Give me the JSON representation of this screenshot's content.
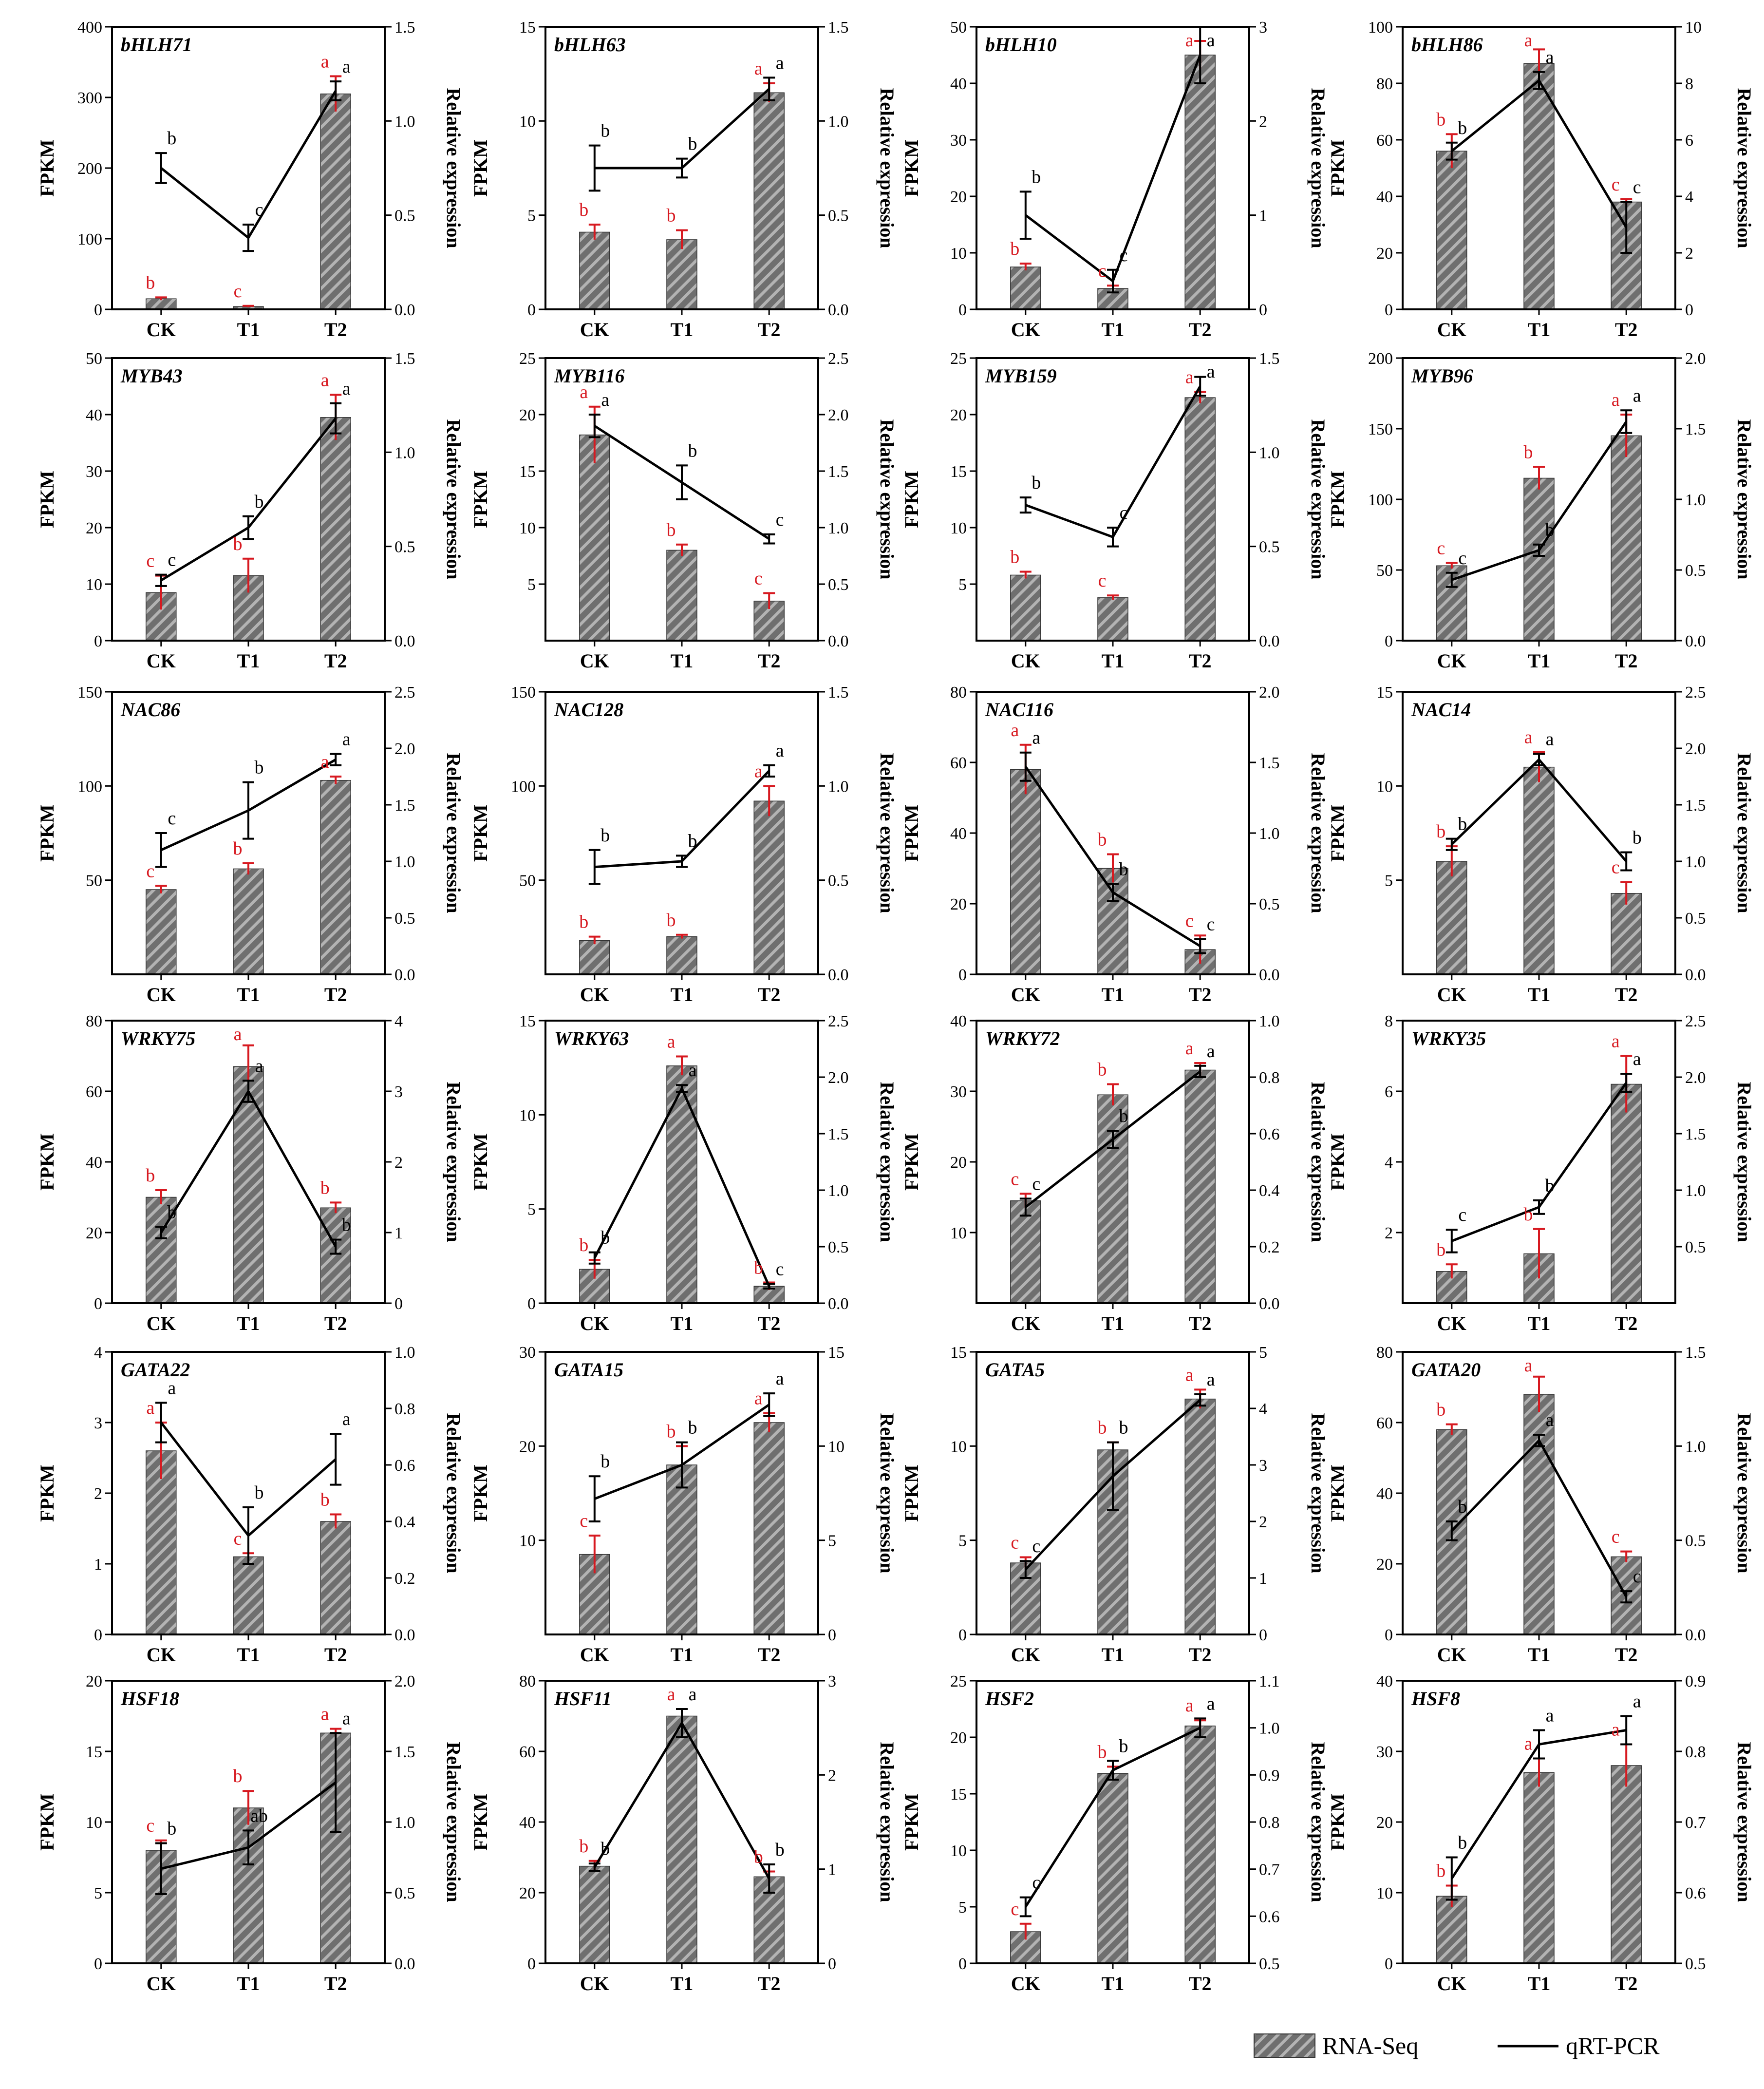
{
  "categories": [
    "CK",
    "T1",
    "T2"
  ],
  "y_left_label": "FPKM",
  "y_right_label": "Relative expression",
  "legend": {
    "bar_label": "RNA-Seq",
    "line_label": "qRT-PCR"
  },
  "colors": {
    "bar_fill": "#6f6f6f",
    "rna_letter": "#d71920",
    "qpcr_letter": "#000000",
    "line": "#000000"
  },
  "chart_data": [
    {
      "type": "bar+line",
      "gene": "bHLH71",
      "left": {
        "min": 0,
        "max": 400,
        "ticks": [
          0,
          100,
          200,
          300,
          400
        ]
      },
      "right": {
        "min": 0,
        "max": 1.5,
        "ticks": [
          "0.0",
          "0.5",
          "1.0",
          "1.5"
        ]
      },
      "rnaseq": [
        15,
        4,
        305
      ],
      "rnaseq_err": [
        2,
        1,
        25
      ],
      "rnaseq_sig": [
        "b",
        "c",
        "a"
      ],
      "qpcr": [
        0.75,
        0.38,
        1.16
      ],
      "qpcr_err": [
        0.08,
        0.07,
        0.05
      ],
      "qpcr_sig": [
        "b",
        "c",
        "a"
      ]
    },
    {
      "type": "bar+line",
      "gene": "bHLH63",
      "left": {
        "min": 0,
        "max": 15,
        "ticks": [
          0,
          5,
          10,
          15
        ]
      },
      "right": {
        "min": 0,
        "max": 1.5,
        "ticks": [
          "0.0",
          "0.5",
          "1.0",
          "1.5"
        ]
      },
      "rnaseq": [
        4.1,
        3.7,
        11.5
      ],
      "rnaseq_err": [
        0.4,
        0.5,
        0.5
      ],
      "rnaseq_sig": [
        "b",
        "b",
        "a"
      ],
      "qpcr": [
        0.75,
        0.75,
        1.17
      ],
      "qpcr_err": [
        0.12,
        0.05,
        0.06
      ],
      "qpcr_sig": [
        "b",
        "b",
        "a"
      ]
    },
    {
      "type": "bar+line",
      "gene": "bHLH10",
      "left": {
        "min": 0,
        "max": 50,
        "ticks": [
          0,
          10,
          20,
          30,
          40,
          50
        ]
      },
      "right": {
        "min": 0,
        "max": 3,
        "ticks": [
          "0",
          "1",
          "2",
          "3"
        ]
      },
      "rnaseq": [
        7.5,
        3.7,
        45
      ],
      "rnaseq_err": [
        0.6,
        0.5,
        2.5
      ],
      "rnaseq_sig": [
        "b",
        "c",
        "a"
      ],
      "qpcr": [
        1.0,
        0.3,
        2.7
      ],
      "qpcr_err": [
        0.25,
        0.12,
        0.3
      ],
      "qpcr_sig": [
        "b",
        "c",
        "a"
      ]
    },
    {
      "type": "bar+line",
      "gene": "bHLH86",
      "left": {
        "min": 0,
        "max": 100,
        "ticks": [
          0,
          20,
          40,
          60,
          80,
          100
        ]
      },
      "right": {
        "min": 0,
        "max": 10,
        "ticks": [
          "0",
          "2",
          "4",
          "6",
          "8",
          "10"
        ]
      },
      "rnaseq": [
        56,
        87,
        38
      ],
      "rnaseq_err": [
        6,
        5,
        1
      ],
      "rnaseq_sig": [
        "b",
        "a",
        "c"
      ],
      "qpcr": [
        5.6,
        8.1,
        2.9
      ],
      "qpcr_err": [
        0.3,
        0.3,
        0.9
      ],
      "qpcr_sig": [
        "b",
        "a",
        "c"
      ]
    },
    {
      "type": "bar+line",
      "gene": "MYB43",
      "left": {
        "min": 0,
        "max": 50,
        "ticks": [
          0,
          10,
          20,
          30,
          40,
          50
        ]
      },
      "right": {
        "min": 0,
        "max": 1.5,
        "ticks": [
          "0.0",
          "0.5",
          "1.0",
          "1.5"
        ]
      },
      "rnaseq": [
        8.5,
        11.5,
        39.5
      ],
      "rnaseq_err": [
        3,
        3,
        4
      ],
      "rnaseq_sig": [
        "c",
        "b",
        "a"
      ],
      "qpcr": [
        0.32,
        0.6,
        1.18
      ],
      "qpcr_err": [
        0.03,
        0.06,
        0.08
      ],
      "qpcr_sig": [
        "c",
        "b",
        "a"
      ]
    },
    {
      "type": "bar+line",
      "gene": "MYB116",
      "left": {
        "min": 0,
        "max": 25,
        "ticks": [
          5,
          10,
          15,
          20,
          25
        ]
      },
      "right": {
        "min": 0,
        "max": 2.5,
        "ticks": [
          "0.0",
          "0.5",
          "1.0",
          "1.5",
          "2.0",
          "2.5"
        ]
      },
      "rnaseq": [
        18.2,
        8.0,
        3.5
      ],
      "rnaseq_err": [
        2.5,
        0.5,
        0.7
      ],
      "rnaseq_sig": [
        "a",
        "b",
        "c"
      ],
      "qpcr": [
        1.9,
        1.4,
        0.9
      ],
      "qpcr_err": [
        0.1,
        0.15,
        0.04
      ],
      "qpcr_sig": [
        "a",
        "b",
        "c"
      ]
    },
    {
      "type": "bar+line",
      "gene": "MYB159",
      "left": {
        "min": 0,
        "max": 25,
        "ticks": [
          5,
          10,
          15,
          20,
          25
        ]
      },
      "right": {
        "min": 0,
        "max": 1.5,
        "ticks": [
          "0.0",
          "0.5",
          "1.0",
          "1.5"
        ]
      },
      "rnaseq": [
        5.8,
        3.8,
        21.5
      ],
      "rnaseq_err": [
        0.3,
        0.2,
        0.5
      ],
      "rnaseq_sig": [
        "b",
        "c",
        "a"
      ],
      "qpcr": [
        0.72,
        0.55,
        1.35
      ],
      "qpcr_err": [
        0.04,
        0.05,
        0.05
      ],
      "qpcr_sig": [
        "b",
        "c",
        "a"
      ]
    },
    {
      "type": "bar+line",
      "gene": "MYB96",
      "left": {
        "min": 0,
        "max": 200,
        "ticks": [
          0,
          50,
          100,
          150,
          200
        ]
      },
      "right": {
        "min": 0,
        "max": 2.0,
        "ticks": [
          "0.0",
          "0.5",
          "1.0",
          "1.5",
          "2.0"
        ]
      },
      "rnaseq": [
        53,
        115,
        145
      ],
      "rnaseq_err": [
        2,
        8,
        15
      ],
      "rnaseq_sig": [
        "c",
        "b",
        "a"
      ],
      "qpcr": [
        0.43,
        0.64,
        1.55
      ],
      "qpcr_err": [
        0.05,
        0.04,
        0.08
      ],
      "qpcr_sig": [
        "c",
        "b",
        "a"
      ]
    },
    {
      "type": "bar+line",
      "gene": "NAC86",
      "left": {
        "min": 0,
        "max": 150,
        "ticks": [
          50,
          100,
          150
        ]
      },
      "right": {
        "min": 0,
        "max": 2.5,
        "ticks": [
          "0.0",
          "0.5",
          "1.0",
          "1.5",
          "2.0",
          "2.5"
        ]
      },
      "rnaseq": [
        45,
        56,
        103
      ],
      "rnaseq_err": [
        2,
        3,
        2
      ],
      "rnaseq_sig": [
        "c",
        "b",
        "a"
      ],
      "qpcr": [
        1.1,
        1.45,
        1.9
      ],
      "qpcr_err": [
        0.15,
        0.25,
        0.05
      ],
      "qpcr_sig": [
        "c",
        "b",
        "a"
      ]
    },
    {
      "type": "bar+line",
      "gene": "NAC128",
      "left": {
        "min": 0,
        "max": 150,
        "ticks": [
          50,
          100,
          150
        ]
      },
      "right": {
        "min": 0,
        "max": 1.5,
        "ticks": [
          "0.0",
          "0.5",
          "1.0",
          "1.5"
        ]
      },
      "rnaseq": [
        18,
        20,
        92
      ],
      "rnaseq_err": [
        2,
        1,
        8
      ],
      "rnaseq_sig": [
        "b",
        "b",
        "a"
      ],
      "qpcr": [
        0.57,
        0.6,
        1.08
      ],
      "qpcr_err": [
        0.09,
        0.03,
        0.03
      ],
      "qpcr_sig": [
        "b",
        "b",
        "a"
      ]
    },
    {
      "type": "bar+line",
      "gene": "NAC116",
      "left": {
        "min": 0,
        "max": 80,
        "ticks": [
          0,
          20,
          40,
          60,
          80
        ]
      },
      "right": {
        "min": 0,
        "max": 2.0,
        "ticks": [
          "0.0",
          "0.5",
          "1.0",
          "1.5",
          "2.0"
        ]
      },
      "rnaseq": [
        58,
        30,
        7
      ],
      "rnaseq_err": [
        7,
        4,
        4
      ],
      "rnaseq_sig": [
        "a",
        "b",
        "c"
      ],
      "qpcr": [
        1.47,
        0.58,
        0.2
      ],
      "qpcr_err": [
        0.1,
        0.06,
        0.05
      ],
      "qpcr_sig": [
        "a",
        "b",
        "c"
      ]
    },
    {
      "type": "bar+line",
      "gene": "NAC14",
      "left": {
        "min": 0,
        "max": 15,
        "ticks": [
          5,
          10,
          15
        ]
      },
      "right": {
        "min": 0,
        "max": 2.5,
        "ticks": [
          "0.0",
          "0.5",
          "1.0",
          "1.5",
          "2.0",
          "2.5"
        ]
      },
      "rnaseq": [
        6.0,
        11.0,
        4.3
      ],
      "rnaseq_err": [
        0.8,
        0.8,
        0.6
      ],
      "rnaseq_sig": [
        "b",
        "a",
        "c"
      ],
      "qpcr": [
        1.15,
        1.9,
        1.0
      ],
      "qpcr_err": [
        0.05,
        0.05,
        0.08
      ],
      "qpcr_sig": [
        "b",
        "a",
        "b"
      ]
    },
    {
      "type": "bar+line",
      "gene": "WRKY75",
      "left": {
        "min": 0,
        "max": 80,
        "ticks": [
          0,
          20,
          40,
          60,
          80
        ]
      },
      "right": {
        "min": 0,
        "max": 4,
        "ticks": [
          "0",
          "1",
          "2",
          "3",
          "4"
        ]
      },
      "rnaseq": [
        30,
        67,
        27
      ],
      "rnaseq_err": [
        2,
        6,
        1.5
      ],
      "rnaseq_sig": [
        "b",
        "a",
        "b"
      ],
      "qpcr": [
        1.0,
        3.0,
        0.8
      ],
      "qpcr_err": [
        0.08,
        0.15,
        0.1
      ],
      "qpcr_sig": [
        "b",
        "a",
        "b"
      ]
    },
    {
      "type": "bar+line",
      "gene": "WRKY63",
      "left": {
        "min": 0,
        "max": 15,
        "ticks": [
          0,
          5,
          10,
          15
        ]
      },
      "right": {
        "min": 0,
        "max": 2.5,
        "ticks": [
          "0.0",
          "0.5",
          "1.0",
          "1.5",
          "2.0",
          "2.5"
        ]
      },
      "rnaseq": [
        1.8,
        12.6,
        0.9
      ],
      "rnaseq_err": [
        0.5,
        0.5,
        0.2
      ],
      "rnaseq_sig": [
        "b",
        "a",
        "b"
      ],
      "qpcr": [
        0.4,
        1.9,
        0.15
      ],
      "qpcr_err": [
        0.05,
        0.03,
        0.02
      ],
      "qpcr_sig": [
        "b",
        "a",
        "c"
      ]
    },
    {
      "type": "bar+line",
      "gene": "WRKY72",
      "left": {
        "min": 0,
        "max": 40,
        "ticks": [
          10,
          20,
          30,
          40
        ]
      },
      "right": {
        "min": 0,
        "max": 1.0,
        "ticks": [
          "0.0",
          "0.2",
          "0.4",
          "0.6",
          "0.8",
          "1.0"
        ]
      },
      "rnaseq": [
        14.5,
        29.5,
        33
      ],
      "rnaseq_err": [
        1,
        1.5,
        1
      ],
      "rnaseq_sig": [
        "c",
        "b",
        "a"
      ],
      "qpcr": [
        0.34,
        0.58,
        0.82
      ],
      "qpcr_err": [
        0.03,
        0.03,
        0.02
      ],
      "qpcr_sig": [
        "c",
        "b",
        "a"
      ]
    },
    {
      "type": "bar+line",
      "gene": "WRKY35",
      "left": {
        "min": 0,
        "max": 8,
        "ticks": [
          2,
          4,
          6,
          8
        ]
      },
      "right": {
        "min": 0,
        "max": 2.5,
        "ticks": [
          "0.5",
          "1.0",
          "1.5",
          "2.0",
          "2.5"
        ]
      },
      "rnaseq": [
        0.9,
        1.4,
        6.2
      ],
      "rnaseq_err": [
        0.2,
        0.7,
        0.8
      ],
      "rnaseq_sig": [
        "b",
        "b",
        "a"
      ],
      "qpcr": [
        0.55,
        0.85,
        1.95
      ],
      "qpcr_err": [
        0.1,
        0.06,
        0.08
      ],
      "qpcr_sig": [
        "c",
        "b",
        "a"
      ]
    },
    {
      "type": "bar+line",
      "gene": "GATA22",
      "left": {
        "min": 0,
        "max": 4,
        "ticks": [
          0,
          1,
          2,
          3,
          4
        ]
      },
      "right": {
        "min": 0,
        "max": 1.0,
        "ticks": [
          "0.0",
          "0.2",
          "0.4",
          "0.6",
          "0.8",
          "1.0"
        ]
      },
      "rnaseq": [
        2.6,
        1.1,
        1.6
      ],
      "rnaseq_err": [
        0.4,
        0.05,
        0.1
      ],
      "rnaseq_sig": [
        "a",
        "c",
        "b"
      ],
      "qpcr": [
        0.75,
        0.35,
        0.62
      ],
      "qpcr_err": [
        0.07,
        0.1,
        0.09
      ],
      "qpcr_sig": [
        "a",
        "b",
        "a"
      ]
    },
    {
      "type": "bar+line",
      "gene": "GATA15",
      "left": {
        "min": 0,
        "max": 30,
        "ticks": [
          10,
          20,
          30
        ]
      },
      "right": {
        "min": 0,
        "max": 15,
        "ticks": [
          "0",
          "5",
          "10",
          "15"
        ]
      },
      "rnaseq": [
        8.5,
        18,
        22.5
      ],
      "rnaseq_err": [
        2,
        2,
        1
      ],
      "rnaseq_sig": [
        "c",
        "b",
        "a"
      ],
      "qpcr": [
        7.2,
        9.0,
        12.2
      ],
      "qpcr_err": [
        1.2,
        1.2,
        0.6
      ],
      "qpcr_sig": [
        "b",
        "b",
        "a"
      ]
    },
    {
      "type": "bar+line",
      "gene": "GATA5",
      "left": {
        "min": 0,
        "max": 15,
        "ticks": [
          0,
          5,
          10,
          15
        ]
      },
      "right": {
        "min": 0,
        "max": 5,
        "ticks": [
          "0",
          "1",
          "2",
          "3",
          "4",
          "5"
        ]
      },
      "rnaseq": [
        3.8,
        9.8,
        12.5
      ],
      "rnaseq_err": [
        0.3,
        0.4,
        0.5
      ],
      "rnaseq_sig": [
        "c",
        "b",
        "a"
      ],
      "qpcr": [
        1.15,
        2.8,
        4.15
      ],
      "qpcr_err": [
        0.15,
        0.6,
        0.1
      ],
      "qpcr_sig": [
        "c",
        "b",
        "a"
      ]
    },
    {
      "type": "bar+line",
      "gene": "GATA20",
      "left": {
        "min": 0,
        "max": 80,
        "ticks": [
          0,
          20,
          40,
          60,
          80
        ]
      },
      "right": {
        "min": 0,
        "max": 1.5,
        "ticks": [
          "0.0",
          "0.5",
          "1.0",
          "1.5"
        ]
      },
      "rnaseq": [
        58,
        68,
        22
      ],
      "rnaseq_err": [
        1.5,
        5,
        1.5
      ],
      "rnaseq_sig": [
        "b",
        "a",
        "c"
      ],
      "qpcr": [
        0.55,
        1.03,
        0.2
      ],
      "qpcr_err": [
        0.05,
        0.03,
        0.03
      ],
      "qpcr_sig": [
        "b",
        "a",
        "c"
      ]
    },
    {
      "type": "bar+line",
      "gene": "HSF18",
      "left": {
        "min": 0,
        "max": 20,
        "ticks": [
          0,
          5,
          10,
          15,
          20
        ]
      },
      "right": {
        "min": 0,
        "max": 2.0,
        "ticks": [
          "0.0",
          "0.5",
          "1.0",
          "1.5",
          "2.0"
        ]
      },
      "rnaseq": [
        8.0,
        11.0,
        16.3
      ],
      "rnaseq_err": [
        0.7,
        1.2,
        0.3
      ],
      "rnaseq_sig": [
        "c",
        "b",
        "a"
      ],
      "qpcr": [
        0.67,
        0.82,
        1.28
      ],
      "qpcr_err": [
        0.18,
        0.12,
        0.35
      ],
      "qpcr_sig": [
        "b",
        "ab",
        "a"
      ]
    },
    {
      "type": "bar+line",
      "gene": "HSF11",
      "left": {
        "min": 0,
        "max": 80,
        "ticks": [
          0,
          20,
          40,
          60,
          80
        ]
      },
      "right": {
        "min": 0,
        "max": 3,
        "ticks": [
          "0",
          "1",
          "2",
          "3"
        ]
      },
      "rnaseq": [
        27.5,
        70,
        24.5
      ],
      "rnaseq_err": [
        1.5,
        2,
        1.5
      ],
      "rnaseq_sig": [
        "b",
        "a",
        "b"
      ],
      "qpcr": [
        1.02,
        2.55,
        0.9
      ],
      "qpcr_err": [
        0.04,
        0.15,
        0.15
      ],
      "qpcr_sig": [
        "b",
        "a",
        "b"
      ]
    },
    {
      "type": "bar+line",
      "gene": "HSF2",
      "left": {
        "min": 0,
        "max": 25,
        "ticks": [
          0,
          5,
          10,
          15,
          20,
          25
        ]
      },
      "right": {
        "min": 0.5,
        "max": 1.1,
        "ticks": [
          "0.5",
          "0.6",
          "0.7",
          "0.8",
          "0.9",
          "1.0",
          "1.1"
        ]
      },
      "rnaseq": [
        2.8,
        16.8,
        21
      ],
      "rnaseq_err": [
        0.7,
        0.6,
        0.5
      ],
      "rnaseq_sig": [
        "c",
        "b",
        "a"
      ],
      "qpcr": [
        0.62,
        0.91,
        1.0
      ],
      "qpcr_err": [
        0.02,
        0.02,
        0.02
      ],
      "qpcr_sig": [
        "c",
        "b",
        "a"
      ]
    },
    {
      "type": "bar+line",
      "gene": "HSF8",
      "left": {
        "min": 0,
        "max": 40,
        "ticks": [
          0,
          10,
          20,
          30,
          40
        ]
      },
      "right": {
        "min": 0.5,
        "max": 0.9,
        "ticks": [
          "0.5",
          "0.6",
          "0.7",
          "0.8",
          "0.9"
        ]
      },
      "rnaseq": [
        9.5,
        27,
        28
      ],
      "rnaseq_err": [
        1.5,
        2,
        3
      ],
      "rnaseq_sig": [
        "b",
        "a",
        "a"
      ],
      "qpcr": [
        0.62,
        0.81,
        0.83
      ],
      "qpcr_err": [
        0.03,
        0.02,
        0.02
      ],
      "qpcr_sig": [
        "b",
        "a",
        "a"
      ]
    }
  ]
}
